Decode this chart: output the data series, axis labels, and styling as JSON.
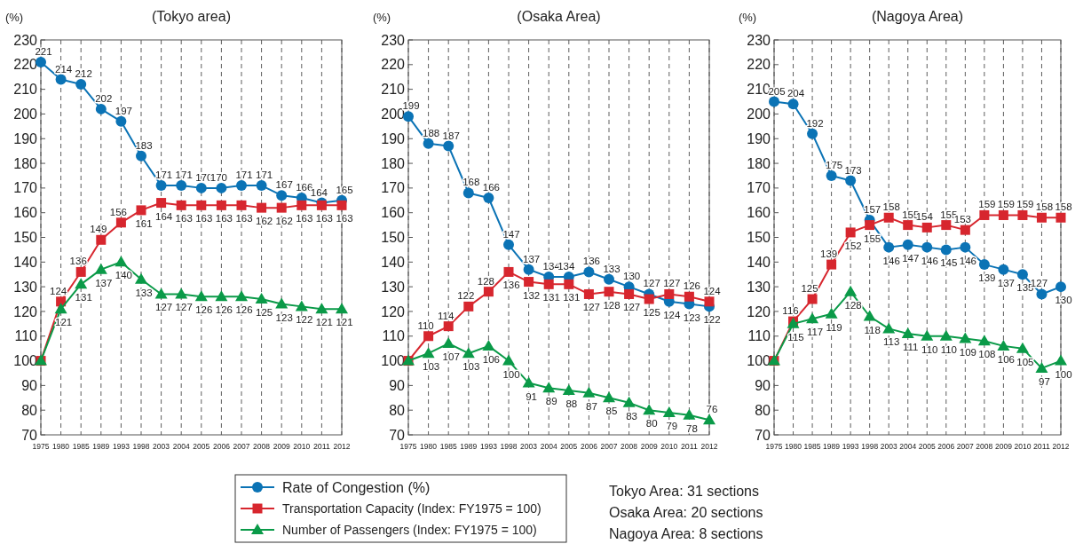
{
  "chart_data": [
    {
      "type": "line",
      "title": "(Tokyo area)",
      "ylabel": "(%)",
      "categories": [
        "1975",
        "1980",
        "1985",
        "1989",
        "1993",
        "1998",
        "2003",
        "2004",
        "2005",
        "2006",
        "2007",
        "2008",
        "2009",
        "2010",
        "2011",
        "2012"
      ],
      "ylim": [
        70,
        230
      ],
      "yticks": [
        70,
        80,
        90,
        100,
        110,
        120,
        130,
        140,
        150,
        160,
        170,
        180,
        190,
        200,
        210,
        220,
        230
      ],
      "grid": "x",
      "series": [
        {
          "color": "#0b73b5",
          "marker": "circle",
          "values": [
            221,
            214,
            212,
            202,
            197,
            183,
            171,
            171,
            170,
            170,
            171,
            171,
            167,
            166,
            164,
            165
          ],
          "value_labels": [
            "221",
            "214",
            "212",
            "202",
            "197",
            "183",
            "171",
            "171",
            "170",
            "170",
            "171",
            "171",
            "167",
            "166",
            "164",
            "165"
          ]
        },
        {
          "color": "#d7262e",
          "marker": "square",
          "values": [
            100,
            124,
            136,
            149,
            156,
            161,
            164,
            163,
            163,
            163,
            163,
            162,
            162,
            163,
            163,
            163
          ],
          "value_labels": [
            null,
            "124",
            "136",
            "149",
            "156",
            "161",
            "164",
            "163",
            "163",
            "163",
            "163",
            "162",
            "162",
            "163",
            "163",
            "163"
          ]
        },
        {
          "color": "#0a9a48",
          "marker": "triangle",
          "values": [
            100,
            121,
            131,
            137,
            140,
            133,
            127,
            127,
            126,
            126,
            126,
            125,
            123,
            122,
            121,
            121
          ],
          "value_labels": [
            null,
            "121",
            "131",
            "137",
            "140",
            "133",
            "127",
            "127",
            "126",
            "126",
            "126",
            "125",
            "123",
            "122",
            "121",
            "121"
          ]
        }
      ]
    },
    {
      "type": "line",
      "title": "(Osaka Area)",
      "ylabel": "(%)",
      "categories": [
        "1975",
        "1980",
        "1985",
        "1989",
        "1993",
        "1998",
        "2003",
        "2004",
        "2005",
        "2006",
        "2007",
        "2008",
        "2009",
        "2010",
        "2011",
        "2012"
      ],
      "ylim": [
        70,
        230
      ],
      "yticks": [
        70,
        80,
        90,
        100,
        110,
        120,
        130,
        140,
        150,
        160,
        170,
        180,
        190,
        200,
        210,
        220,
        230
      ],
      "grid": "x",
      "legend": "bottom",
      "series": [
        {
          "name": "Rate of Congestion (%)",
          "color": "#0b73b5",
          "marker": "circle",
          "values": [
            199,
            188,
            187,
            168,
            166,
            147,
            137,
            134,
            134,
            136,
            133,
            130,
            127,
            124,
            123,
            122
          ],
          "value_labels": [
            "199",
            "188",
            "187",
            "168",
            "166",
            "147",
            "137",
            "134",
            "134",
            "136",
            "133",
            "130",
            "127",
            "124",
            "123",
            "122"
          ]
        },
        {
          "name": "Transportation Capacity (Index: FY1975 = 100)",
          "color": "#d7262e",
          "marker": "square",
          "values": [
            100,
            110,
            114,
            122,
            128,
            136,
            132,
            131,
            131,
            127,
            128,
            127,
            125,
            127,
            126,
            124
          ],
          "value_labels": [
            null,
            "110",
            "114",
            "122",
            "128",
            "136",
            "132",
            "131",
            "131",
            "127",
            "128",
            "127",
            "125",
            "127",
            "126",
            "124"
          ]
        },
        {
          "name": "Number of Passengers (Index: FY1975 = 100)",
          "color": "#0a9a48",
          "marker": "triangle",
          "values": [
            100,
            103,
            107,
            103,
            106,
            100,
            91,
            89,
            88,
            87,
            85,
            83,
            80,
            79,
            78,
            76
          ],
          "value_labels": [
            null,
            "103",
            "107",
            "103",
            "106",
            "100",
            "91",
            "89",
            "88",
            "87",
            "85",
            "83",
            "80",
            "79",
            "78",
            "76"
          ]
        }
      ]
    },
    {
      "type": "line",
      "title": "(Nagoya Area)",
      "ylabel": "(%)",
      "categories": [
        "1975",
        "1980",
        "1985",
        "1989",
        "1993",
        "1998",
        "2003",
        "2004",
        "2005",
        "2006",
        "2007",
        "2008",
        "2009",
        "2010",
        "2011",
        "2012"
      ],
      "ylim": [
        70,
        230
      ],
      "yticks": [
        70,
        80,
        90,
        100,
        110,
        120,
        130,
        140,
        150,
        160,
        170,
        180,
        190,
        200,
        210,
        220,
        230
      ],
      "grid": "x",
      "annotations": [
        "Tokyo Area: 31 sections",
        "Osaka Area: 20 sections",
        "Nagoya Area: 8 sections"
      ],
      "series": [
        {
          "color": "#0b73b5",
          "marker": "circle",
          "values": [
            205,
            204,
            192,
            175,
            173,
            157,
            146,
            147,
            146,
            145,
            146,
            139,
            137,
            135,
            127,
            130
          ],
          "value_labels": [
            "205",
            "204",
            "192",
            "175",
            "173",
            "157",
            "146",
            "147",
            "146",
            "145",
            "146",
            "139",
            "137",
            "135",
            "127",
            "130"
          ]
        },
        {
          "color": "#d7262e",
          "marker": "square",
          "values": [
            100,
            116,
            125,
            139,
            152,
            155,
            158,
            155,
            154,
            155,
            153,
            159,
            159,
            159,
            158,
            158
          ],
          "value_labels": [
            null,
            "116",
            "125",
            "139",
            "152",
            "155",
            "158",
            "155",
            "154",
            "155",
            "153",
            "159",
            "159",
            "159",
            "158",
            "158"
          ]
        },
        {
          "color": "#0a9a48",
          "marker": "triangle",
          "values": [
            100,
            115,
            117,
            119,
            128,
            118,
            113,
            111,
            110,
            110,
            109,
            108,
            106,
            105,
            97,
            100
          ],
          "value_labels": [
            null,
            "115",
            "117",
            "119",
            "128",
            "118",
            "113",
            "111",
            "110",
            "110",
            "109",
            "108",
            "106",
            "105",
            "97",
            "100"
          ]
        }
      ]
    }
  ]
}
